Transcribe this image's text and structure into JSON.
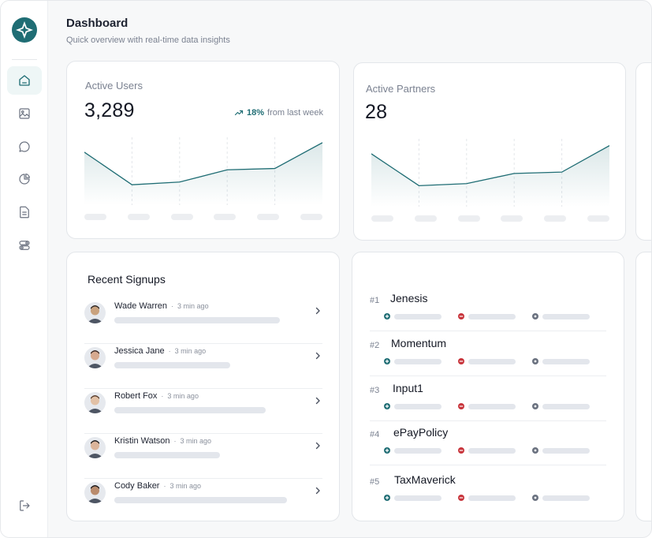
{
  "header": {
    "title": "Dashboard",
    "subtitle": "Quick overview with real-time data insights"
  },
  "sidebar": {
    "logo_icon": "compass-star-logo",
    "items": [
      {
        "icon": "home-icon",
        "active": true
      },
      {
        "icon": "image-icon",
        "active": false
      },
      {
        "icon": "chat-icon",
        "active": false
      },
      {
        "icon": "pie-chart-icon",
        "active": false
      },
      {
        "icon": "document-icon",
        "active": false
      },
      {
        "icon": "toggle-settings-icon",
        "active": false
      }
    ],
    "logout_icon": "logout-icon"
  },
  "metrics": {
    "active_users": {
      "label": "Active Users",
      "value": "3,289",
      "trend_pct": "18%",
      "trend_text": "from last week",
      "chart_points": [
        78,
        30,
        34,
        52,
        54,
        92
      ]
    },
    "active_partners": {
      "label": "Active Partners",
      "value": "28",
      "chart_points": [
        78,
        31,
        34,
        49,
        51,
        90
      ]
    }
  },
  "recent_signups": {
    "title": "Recent Signups",
    "items": [
      {
        "name": "Wade Warren",
        "time": "3 min ago",
        "bar": 210
      },
      {
        "name": "Jessica Jane",
        "time": "3 min ago",
        "bar": 147
      },
      {
        "name": "Robert Fox",
        "time": "3 min ago",
        "bar": 192
      },
      {
        "name": "Kristin Watson",
        "time": "3 min ago",
        "bar": 134
      },
      {
        "name": "Cody Baker",
        "time": "3 min ago",
        "bar": 219
      }
    ]
  },
  "partners": {
    "items": [
      {
        "rank": "#1",
        "name": "Jenesis"
      },
      {
        "rank": "#2",
        "name": "Momentum"
      },
      {
        "rank": "#3",
        "name": "Input1"
      },
      {
        "rank": "#4",
        "name": "ePayPolicy"
      },
      {
        "rank": "#5",
        "name": "TaxMaverick"
      }
    ]
  },
  "colors": {
    "accent": "#1f6d74",
    "positive": "#1f6d74",
    "negative": "#c8343b",
    "neutral": "#6b7280"
  }
}
